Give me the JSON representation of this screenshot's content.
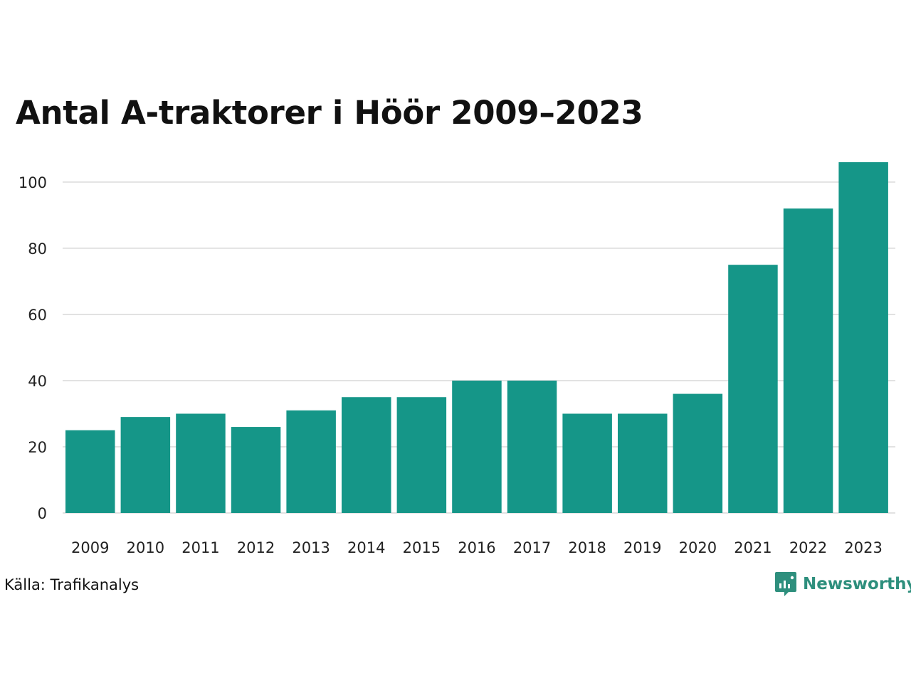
{
  "chart_data": {
    "type": "bar",
    "title": "Antal A-traktorer i Höör 2009–2023",
    "categories": [
      "2009",
      "2010",
      "2011",
      "2012",
      "2013",
      "2014",
      "2015",
      "2016",
      "2017",
      "2018",
      "2019",
      "2020",
      "2021",
      "2022",
      "2023"
    ],
    "values": [
      25,
      29,
      30,
      26,
      31,
      35,
      35,
      40,
      40,
      30,
      30,
      36,
      75,
      92,
      106
    ],
    "yticks": [
      0,
      20,
      40,
      60,
      80,
      100
    ],
    "ylim": [
      0,
      106
    ],
    "xlabel": "",
    "ylabel": "",
    "grid": true,
    "bar_color": "#159688",
    "grid_color": "#e2e2e2"
  },
  "footer": {
    "source": "Källa: Trafikanalys",
    "brand": "Newsworthy",
    "brand_icon": "newsworthy-logo-icon",
    "brand_color": "#2e8f7d"
  }
}
